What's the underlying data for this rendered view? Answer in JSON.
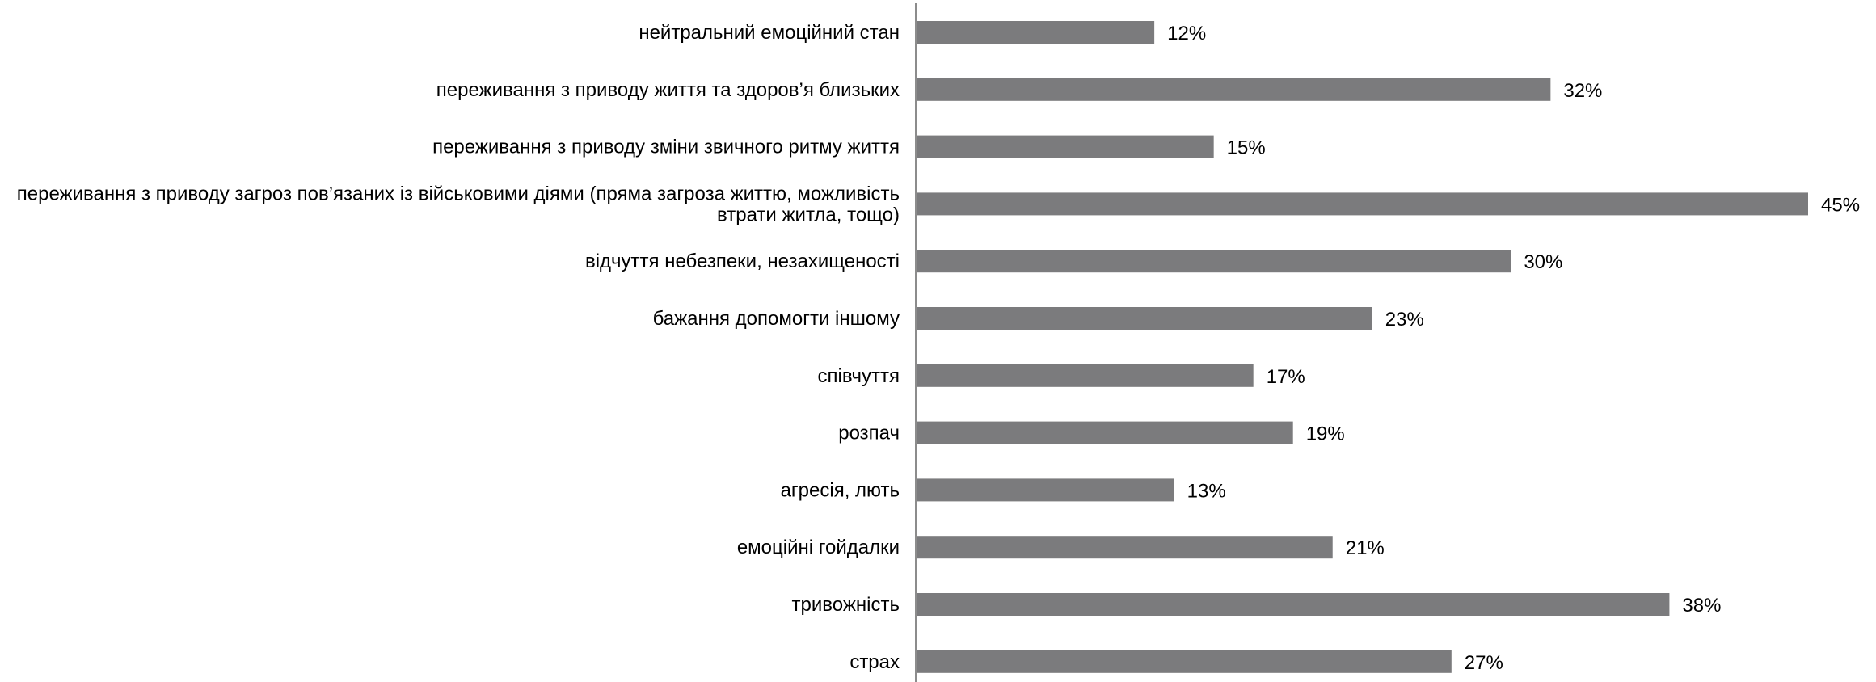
{
  "chart_data": {
    "type": "bar",
    "orientation": "horizontal",
    "title": "",
    "xlabel": "",
    "ylabel": "",
    "categories": [
      "нейтральний емоційний стан",
      "переживання з приводу життя та здоров’я близьких",
      "переживання з приводу зміни звичного ритму життя",
      "переживання з приводу загроз пов’язаних із військовими діями (пряма загроза життю, можливість втрати житла, тощо)",
      "відчуття небезпеки, незахищеності",
      "бажання допомогти іншому",
      "співчуття",
      "розпач",
      "агресія, лють",
      "емоційні гойдалки",
      "тривожність",
      "страх"
    ],
    "category_lines": [
      [
        "нейтральний емоційний стан"
      ],
      [
        "переживання з приводу життя та здоров’я близьких"
      ],
      [
        "переживання з приводу зміни звичного ритму життя"
      ],
      [
        "переживання з приводу загроз пов’язаних із військовими діями (пряма загроза життю, можливість",
        "втрати житла, тощо)"
      ],
      [
        "відчуття небезпеки, незахищеності"
      ],
      [
        "бажання допомогти іншому"
      ],
      [
        "співчуття"
      ],
      [
        "розпач"
      ],
      [
        "агресія, лють"
      ],
      [
        "емоційні гойдалки"
      ],
      [
        "тривожність"
      ],
      [
        "страх"
      ]
    ],
    "values": [
      12,
      32,
      15,
      45,
      30,
      23,
      17,
      19,
      13,
      21,
      38,
      27
    ],
    "value_labels": [
      "12%",
      "32%",
      "15%",
      "45%",
      "30%",
      "23%",
      "17%",
      "19%",
      "13%",
      "21%",
      "38%",
      "27%"
    ],
    "xlim": [
      0,
      45
    ],
    "unit": "%",
    "grid": false,
    "legend": "none",
    "bar_color": "#7b7b7d",
    "axis_color": "#8c8c8c"
  }
}
